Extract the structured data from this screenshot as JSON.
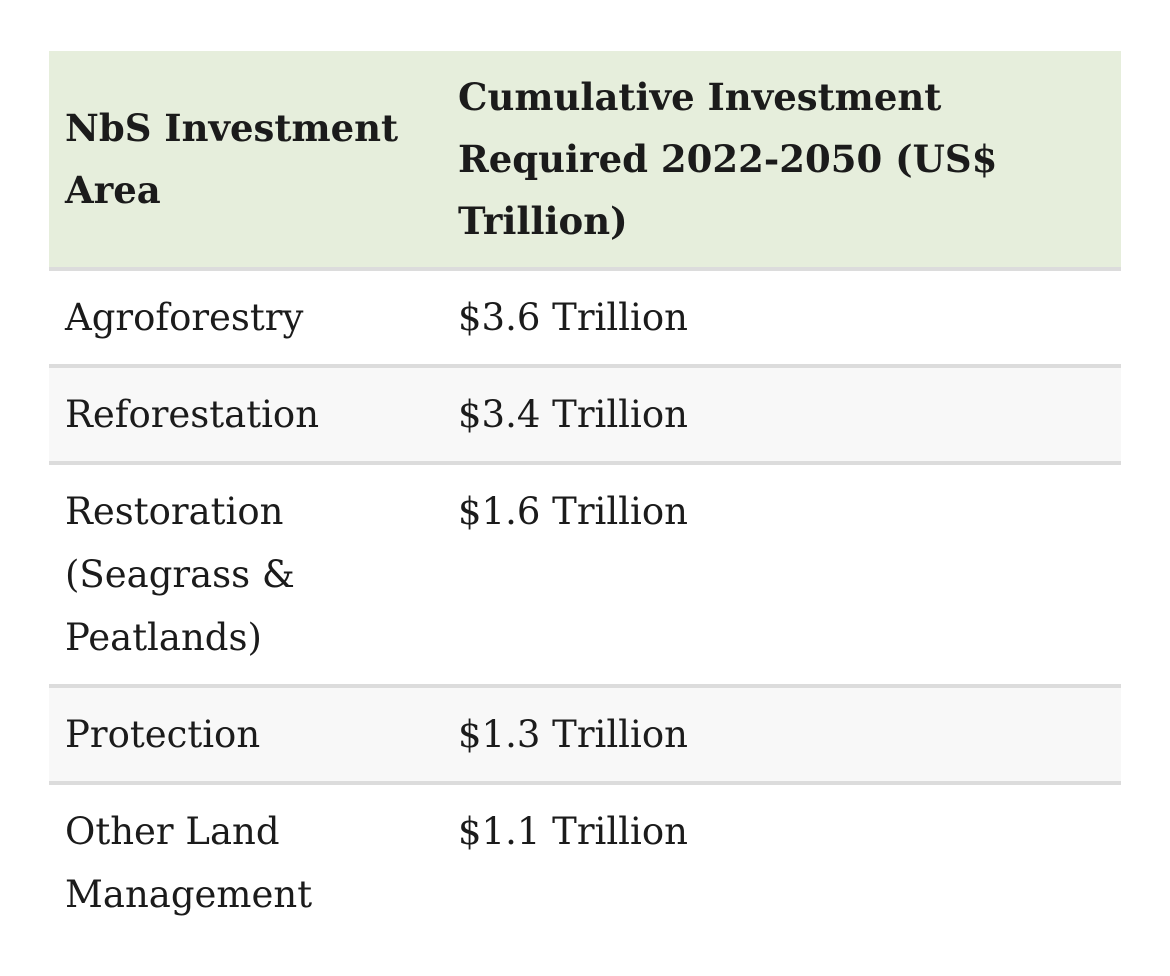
{
  "table": {
    "headers": [
      "NbS Investment Area",
      "Cumulative Investment Required 2022-2050 (US$ Trillion)"
    ],
    "rows": [
      {
        "area": "Agroforestry",
        "investment": "$3.6 Trillion"
      },
      {
        "area": "Reforestation",
        "investment": "$3.4 Trillion"
      },
      {
        "area": "Restoration (Seagrass & Peatlands)",
        "investment": "$1.6 Trillion"
      },
      {
        "area": "Protection",
        "investment": "$1.3 Trillion"
      },
      {
        "area": "Other Land Management",
        "investment": "$1.1 Trillion"
      }
    ]
  },
  "colors": {
    "header_bg": "#e6eedc",
    "stripe_bg": "#f8f8f8",
    "divider": "#dcdcdc"
  }
}
